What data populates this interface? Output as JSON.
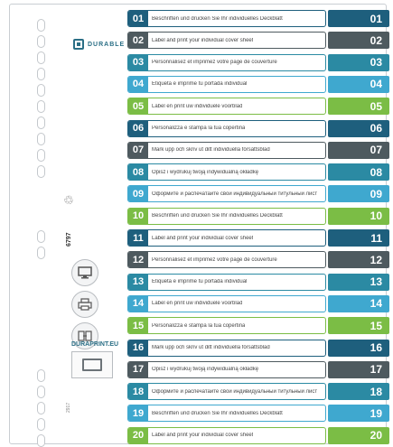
{
  "brand": {
    "logo_text": "DURABLE"
  },
  "article_number": "6797",
  "footer_code": "2917",
  "duraprint": {
    "label": "DURAPRINT.EU"
  },
  "icons": [
    "monitor-icon",
    "printer-icon",
    "document-icon"
  ],
  "colors": {
    "navy": "#1e5f7d",
    "gray": "#4e5a5f",
    "teal": "#2b8aa3",
    "sky": "#3fa8cf",
    "green": "#7bbd45"
  },
  "rows": [
    {
      "num": "01",
      "tab": "01",
      "text": "Beschriften und drucken Sie Ihr individuelles Deckblatt",
      "color": "#1e5f7d"
    },
    {
      "num": "02",
      "tab": "02",
      "text": "Label and print your individual cover sheet",
      "color": "#4e5a5f"
    },
    {
      "num": "03",
      "tab": "03",
      "text": "Personnalisez et imprimez votre page de couverture",
      "color": "#2b8aa3"
    },
    {
      "num": "04",
      "tab": "04",
      "text": "Etiqueta e imprime tu portada individual",
      "color": "#3fa8cf"
    },
    {
      "num": "05",
      "tab": "05",
      "text": "Label en print uw individuele voorblad",
      "color": "#7bbd45"
    },
    {
      "num": "06",
      "tab": "06",
      "text": "Personalizza e stampa la tua copertina",
      "color": "#1e5f7d"
    },
    {
      "num": "07",
      "tab": "07",
      "text": "Mark upp och skriv ut ditt individuella försättsblad",
      "color": "#4e5a5f"
    },
    {
      "num": "08",
      "tab": "08",
      "text": "Opisz i wydrukuj twoją indywidualną okładkę",
      "color": "#2b8aa3"
    },
    {
      "num": "09",
      "tab": "09",
      "text": "Оформите и распечатайте свой индивидуальный титульный лист",
      "color": "#3fa8cf"
    },
    {
      "num": "10",
      "tab": "10",
      "text": "Beschriften und drucken Sie Ihr individuelles Deckblatt",
      "color": "#7bbd45"
    },
    {
      "num": "11",
      "tab": "11",
      "text": "Label and print your individual cover sheet",
      "color": "#1e5f7d"
    },
    {
      "num": "12",
      "tab": "12",
      "text": "Personnalisez et imprimez votre page de couverture",
      "color": "#4e5a5f"
    },
    {
      "num": "13",
      "tab": "13",
      "text": "Etiqueta e imprime tu portada individual",
      "color": "#2b8aa3"
    },
    {
      "num": "14",
      "tab": "14",
      "text": "Label en print uw individuele voorblad",
      "color": "#3fa8cf"
    },
    {
      "num": "15",
      "tab": "15",
      "text": "Personalizza e stampa la tua copertina",
      "color": "#7bbd45"
    },
    {
      "num": "16",
      "tab": "16",
      "text": "Mark upp och skriv ut ditt individuella försättsblad",
      "color": "#1e5f7d"
    },
    {
      "num": "17",
      "tab": "17",
      "text": "Opisz i wydrukuj twoją indywidualną okładkę",
      "color": "#4e5a5f"
    },
    {
      "num": "18",
      "tab": "18",
      "text": "Оформите и распечатайте свой индивидуальный титульный лист",
      "color": "#2b8aa3"
    },
    {
      "num": "19",
      "tab": "19",
      "text": "Beschriften und drucken Sie Ihr individuelles Deckblatt",
      "color": "#3fa8cf"
    },
    {
      "num": "20",
      "tab": "20",
      "text": "Label and print your individual cover sheet",
      "color": "#7bbd45"
    }
  ]
}
